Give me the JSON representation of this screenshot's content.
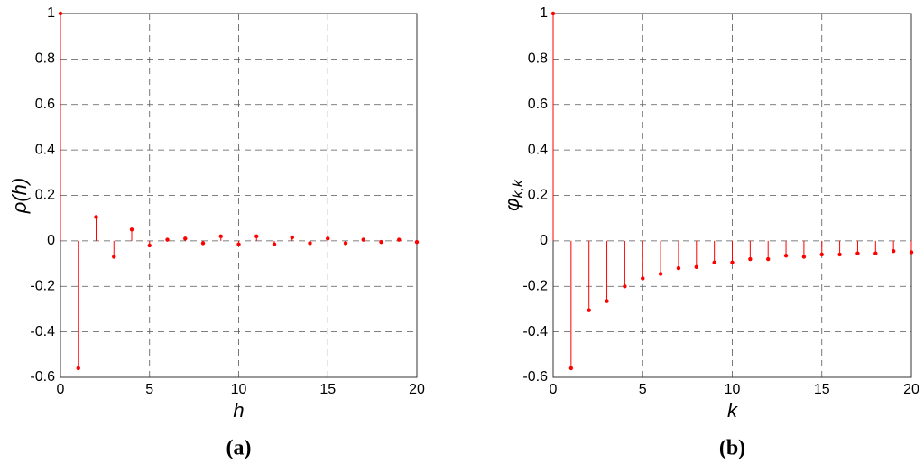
{
  "chart_data": [
    {
      "type": "stem",
      "ylabel": "ρ(h)",
      "xlabel": "h",
      "caption": "(a)",
      "color": "#ff0000",
      "grid": true,
      "x": [
        0,
        1,
        2,
        3,
        4,
        5,
        6,
        7,
        8,
        9,
        10,
        11,
        12,
        13,
        14,
        15,
        16,
        17,
        18,
        19,
        20
      ],
      "values": [
        1,
        -0.56,
        0.105,
        -0.07,
        0.05,
        -0.02,
        0.005,
        0.01,
        -0.01,
        0.02,
        -0.015,
        0.02,
        -0.015,
        0.015,
        -0.01,
        0.01,
        -0.01,
        0.005,
        -0.005,
        0.005,
        -0.005
      ],
      "xlim": [
        0,
        20
      ],
      "xticks": [
        0,
        5,
        10,
        15,
        20
      ],
      "ylim": [
        -0.6,
        1
      ],
      "yticks": [
        -0.6,
        -0.4,
        -0.2,
        0,
        0.2,
        0.4,
        0.6,
        0.8,
        1
      ]
    },
    {
      "type": "stem",
      "ylabel": "φ",
      "ylabel_sub": "k,k",
      "xlabel": "k",
      "caption": "(b)",
      "color": "#ff0000",
      "grid": true,
      "x": [
        0,
        1,
        2,
        3,
        4,
        5,
        6,
        7,
        8,
        9,
        10,
        11,
        12,
        13,
        14,
        15,
        16,
        17,
        18,
        19,
        20
      ],
      "values": [
        1,
        -0.56,
        -0.305,
        -0.265,
        -0.2,
        -0.165,
        -0.145,
        -0.12,
        -0.115,
        -0.095,
        -0.095,
        -0.08,
        -0.08,
        -0.065,
        -0.07,
        -0.06,
        -0.06,
        -0.055,
        -0.055,
        -0.045,
        -0.05
      ],
      "xlim": [
        0,
        20
      ],
      "xticks": [
        0,
        5,
        10,
        15,
        20
      ],
      "ylim": [
        -0.6,
        1
      ],
      "yticks": [
        -0.6,
        -0.4,
        -0.2,
        0,
        0.2,
        0.4,
        0.6,
        0.8,
        1
      ]
    }
  ]
}
